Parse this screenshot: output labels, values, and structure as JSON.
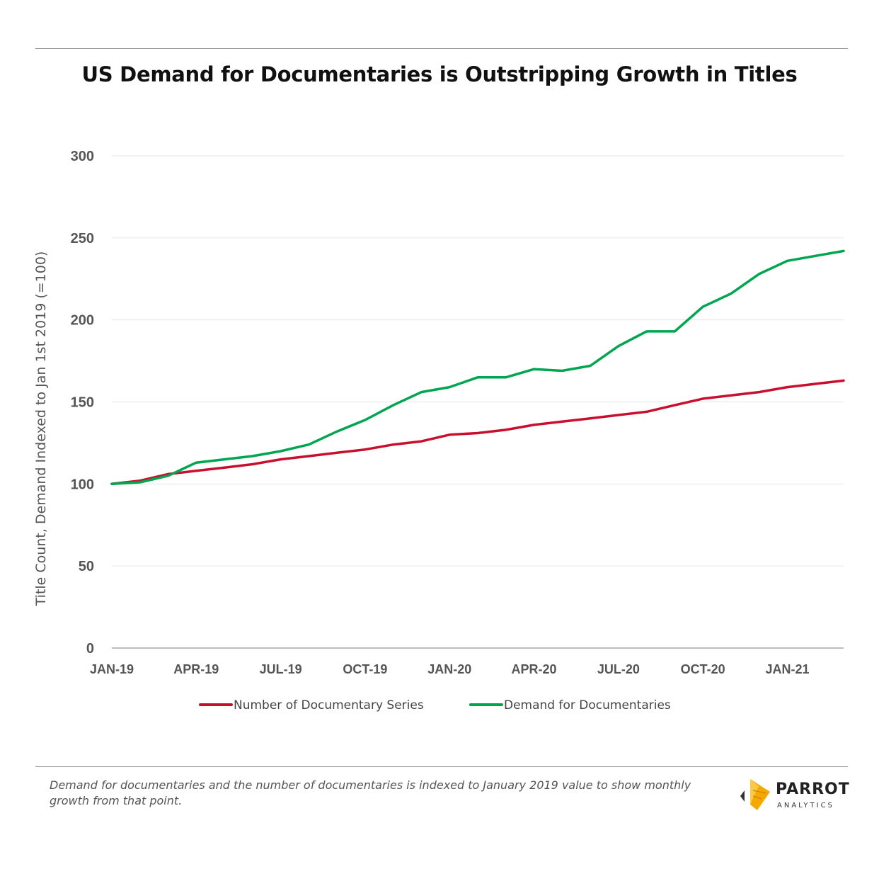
{
  "chart_data": {
    "type": "line",
    "title": "US Demand for Documentaries is Outstripping Growth in Titles",
    "xlabel": "",
    "ylabel": "Title Count, Demand Indexed to Jan 1st 2019 (=100)",
    "ylim": [
      0,
      300
    ],
    "y_ticks": [
      "0",
      "50",
      "100",
      "150",
      "200",
      "250",
      "300"
    ],
    "x_tick_labels": [
      "JAN-19",
      "APR-19",
      "JUL-19",
      "OCT-19",
      "JAN-20",
      "APR-20",
      "JUL-20",
      "OCT-20",
      "JAN-21"
    ],
    "x_tick_index": [
      0,
      3,
      6,
      9,
      12,
      15,
      18,
      21,
      24
    ],
    "months": [
      "Jan-19",
      "Feb-19",
      "Mar-19",
      "Apr-19",
      "May-19",
      "Jun-19",
      "Jul-19",
      "Aug-19",
      "Sep-19",
      "Oct-19",
      "Nov-19",
      "Dec-19",
      "Jan-20",
      "Feb-20",
      "Mar-20",
      "Apr-20",
      "May-20",
      "Jun-20",
      "Jul-20",
      "Aug-20",
      "Sep-20",
      "Oct-20",
      "Nov-20",
      "Dec-20",
      "Jan-21",
      "Feb-21",
      "Mar-21"
    ],
    "grid": true,
    "legend_position": "bottom",
    "series": [
      {
        "name": "Number of Documentary Series",
        "color": "#c8102e",
        "values": [
          100,
          102,
          106,
          108,
          110,
          112,
          115,
          117,
          119,
          121,
          124,
          126,
          130,
          131,
          133,
          136,
          138,
          140,
          142,
          144,
          148,
          152,
          154,
          156,
          159,
          161,
          163
        ]
      },
      {
        "name": "Demand for Documentaries",
        "color": "#00a550",
        "values": [
          100,
          101,
          105,
          113,
          115,
          117,
          120,
          124,
          132,
          139,
          148,
          156,
          159,
          165,
          165,
          170,
          169,
          172,
          184,
          193,
          193,
          208,
          216,
          228,
          236,
          239,
          242
        ]
      }
    ]
  },
  "footnote": "Demand for documentaries and the number of documentaries is indexed to January 2019 value to show monthly growth from that point.",
  "brand": {
    "name": "PARROT",
    "subtitle": "ANALYTICS",
    "accent": "#f5a800"
  }
}
